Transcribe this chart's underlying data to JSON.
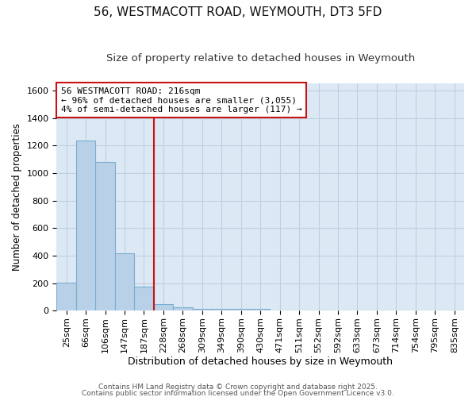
{
  "title1": "56, WESTMACOTT ROAD, WEYMOUTH, DT3 5FD",
  "title2": "Size of property relative to detached houses in Weymouth",
  "xlabel": "Distribution of detached houses by size in Weymouth",
  "ylabel": "Number of detached properties",
  "categories": [
    "25sqm",
    "66sqm",
    "106sqm",
    "147sqm",
    "187sqm",
    "228sqm",
    "268sqm",
    "309sqm",
    "349sqm",
    "390sqm",
    "430sqm",
    "471sqm",
    "511sqm",
    "552sqm",
    "592sqm",
    "633sqm",
    "673sqm",
    "714sqm",
    "754sqm",
    "795sqm",
    "835sqm"
  ],
  "values": [
    205,
    1235,
    1080,
    415,
    175,
    50,
    25,
    15,
    15,
    15,
    15,
    0,
    0,
    0,
    0,
    0,
    0,
    0,
    0,
    0,
    0
  ],
  "bar_color": "#b8d0e8",
  "bar_edge_color": "#7aaed0",
  "vline_index": 5,
  "vline_color": "#cc1111",
  "annotation_text": "56 WESTMACOTT ROAD: 216sqm\n← 96% of detached houses are smaller (3,055)\n4% of semi-detached houses are larger (117) →",
  "annotation_box_facecolor": "#ffffff",
  "annotation_box_edgecolor": "#cc1111",
  "ylim": [
    0,
    1650
  ],
  "yticks": [
    0,
    200,
    400,
    600,
    800,
    1000,
    1200,
    1400,
    1600
  ],
  "grid_color": "#c0d0e0",
  "plot_bg_color": "#dce8f4",
  "fig_bg_color": "#ffffff",
  "footer1": "Contains HM Land Registry data © Crown copyright and database right 2025.",
  "footer2": "Contains public sector information licensed under the Open Government Licence v3.0.",
  "title1_fontsize": 11,
  "title2_fontsize": 9.5,
  "xlabel_fontsize": 9,
  "ylabel_fontsize": 8.5,
  "tick_fontsize": 8,
  "annot_fontsize": 8,
  "footer_fontsize": 6.5
}
